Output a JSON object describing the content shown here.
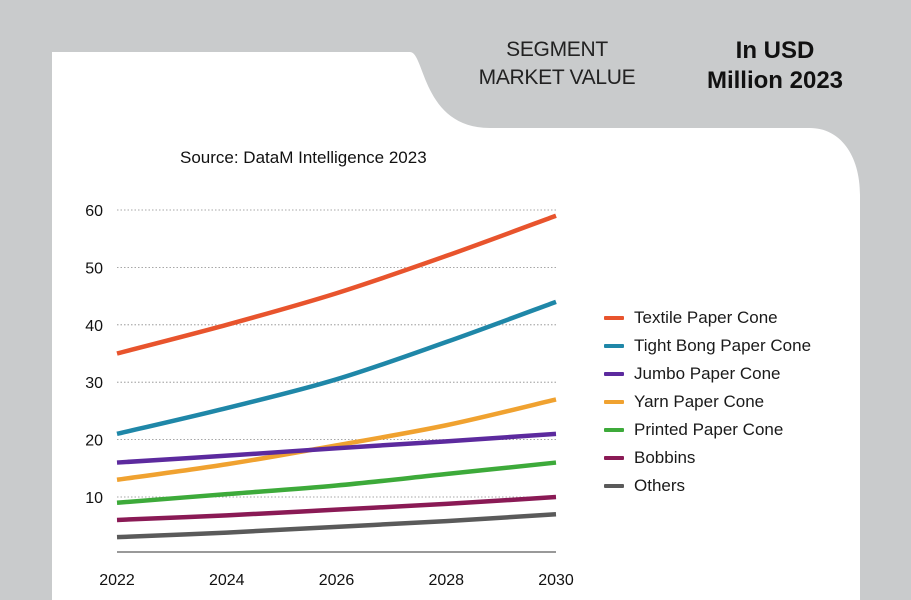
{
  "header": {
    "title_line1": "SEGMENT",
    "title_line2": "MARKET VALUE",
    "unit_line1": "In USD",
    "unit_line2": "Million 2023"
  },
  "source": "Source: DataM Intelligence 2023",
  "colors": {
    "background": "#c9cbcc",
    "panel": "#ffffff"
  },
  "chart_data": {
    "type": "line",
    "title": "",
    "xlabel": "",
    "ylabel": "",
    "x": [
      2022,
      2024,
      2026,
      2028,
      2030
    ],
    "x_ticks": [
      "2022",
      "2024",
      "2026",
      "2028",
      "2030"
    ],
    "y_ticks": [
      "10",
      "20",
      "30",
      "40",
      "50",
      "60"
    ],
    "ylim": [
      0,
      60
    ],
    "xlim": [
      2022,
      2030
    ],
    "grid": "horizontal dotted",
    "legend_position": "right",
    "series": [
      {
        "name": "Textile Paper Cone",
        "color": "#e8542d",
        "values": [
          35,
          40,
          45.5,
          52,
          59
        ]
      },
      {
        "name": "Tight Bong Paper Cone",
        "color": "#1f87a8",
        "values": [
          21,
          25.5,
          30.5,
          37,
          44
        ]
      },
      {
        "name": "Jumbo Paper Cone",
        "color": "#5c2a9e",
        "values": [
          16,
          17.2,
          18.5,
          19.7,
          21
        ]
      },
      {
        "name": "Yarn Paper Cone",
        "color": "#f0a230",
        "values": [
          13,
          15.7,
          19,
          22.5,
          27
        ]
      },
      {
        "name": "Printed Paper Cone",
        "color": "#3daa3a",
        "values": [
          9,
          10.5,
          12,
          14,
          16
        ]
      },
      {
        "name": "Bobbins",
        "color": "#8a1a55",
        "values": [
          6,
          6.8,
          7.8,
          8.8,
          10
        ]
      },
      {
        "name": "Others",
        "color": "#5a5a5a",
        "values": [
          3,
          3.8,
          4.8,
          5.8,
          7
        ]
      }
    ]
  }
}
